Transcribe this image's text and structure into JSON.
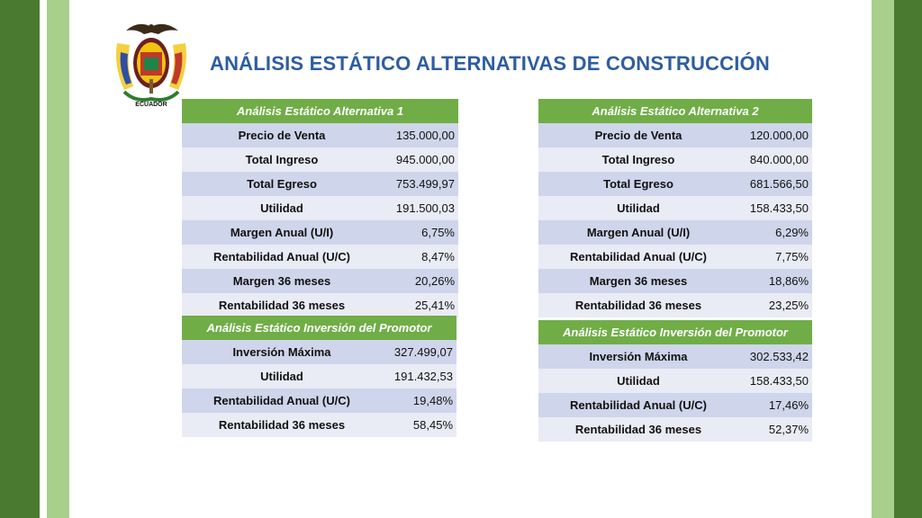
{
  "title": "ANÁLISIS ESTÁTICO ALTERNATIVAS DE CONSTRUCCIÓN",
  "logo": {
    "text": "ECUADOR",
    "icon": "ecuador-coat-of-arms"
  },
  "colors": {
    "header_green": "#70ad47",
    "title_blue": "#2e5d9f",
    "row_dark": "#cfd5ea",
    "row_light": "#e9ebf5"
  },
  "alt1": {
    "header": "Análisis Estático Alternativa 1",
    "rows": [
      {
        "label": "Precio de Venta",
        "value": "135.000,00"
      },
      {
        "label": "Total Ingreso",
        "value": "945.000,00"
      },
      {
        "label": "Total Egreso",
        "value": "753.499,97"
      },
      {
        "label": "Utilidad",
        "value": "191.500,03"
      },
      {
        "label": "Margen Anual (U/I)",
        "value": "6,75%"
      },
      {
        "label": "Rentabilidad Anual (U/C)",
        "value": "8,47%"
      },
      {
        "label": "Margen 36 meses",
        "value": "20,26%"
      },
      {
        "label": "Rentabilidad 36 meses",
        "value": "25,41%"
      }
    ]
  },
  "promotor1": {
    "header": "Análisis Estático Inversión del Promotor",
    "rows": [
      {
        "label": "Inversión Máxima",
        "value": "327.499,07"
      },
      {
        "label": "Utilidad",
        "value": "191.432,53"
      },
      {
        "label": "Rentabilidad Anual (U/C)",
        "value": "19,48%"
      },
      {
        "label": "Rentabilidad 36 meses",
        "value": "58,45%"
      }
    ]
  },
  "alt2": {
    "header": "Análisis Estático Alternativa 2",
    "rows": [
      {
        "label": "Precio de Venta",
        "value": "120.000,00"
      },
      {
        "label": "Total Ingreso",
        "value": "840.000,00"
      },
      {
        "label": "Total Egreso",
        "value": "681.566,50"
      },
      {
        "label": "Utilidad",
        "value": "158.433,50"
      },
      {
        "label": "Margen Anual (U/I)",
        "value": "6,29%"
      },
      {
        "label": "Rentabilidad Anual (U/C)",
        "value": "7,75%"
      },
      {
        "label": "Margen 36 meses",
        "value": "18,86%"
      },
      {
        "label": "Rentabilidad 36 meses",
        "value": "23,25%"
      }
    ]
  },
  "promotor2": {
    "header": "Análisis Estático Inversión del Promotor",
    "rows": [
      {
        "label": "Inversión Máxima",
        "value": "302.533,42"
      },
      {
        "label": "Utilidad",
        "value": "158.433,50"
      },
      {
        "label": "Rentabilidad Anual (U/C)",
        "value": "17,46%"
      },
      {
        "label": "Rentabilidad 36 meses",
        "value": "52,37%"
      }
    ]
  }
}
